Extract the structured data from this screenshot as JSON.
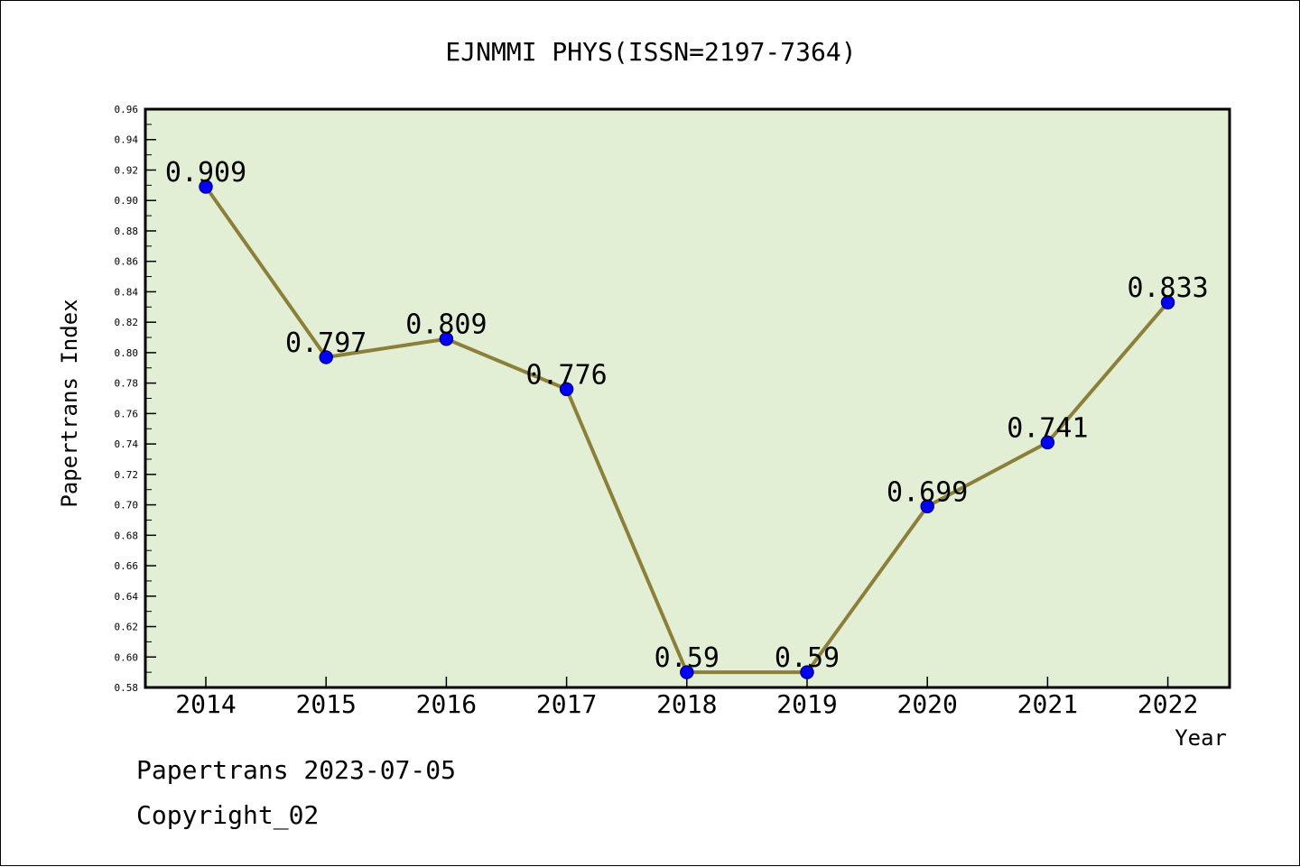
{
  "chart_data": {
    "type": "line",
    "title": "EJNMMI PHYS(ISSN=2197-7364)",
    "xlabel": "Year",
    "ylabel": "Papertrans Index",
    "categories": [
      "2014",
      "2015",
      "2016",
      "2017",
      "2018",
      "2019",
      "2020",
      "2021",
      "2022"
    ],
    "values": [
      0.909,
      0.797,
      0.809,
      0.776,
      0.59,
      0.59,
      0.699,
      0.741,
      0.833
    ],
    "data_labels": [
      "0.909",
      "0.797",
      "0.809",
      "0.776",
      "0.59",
      "0.59",
      "0.699",
      "0.741",
      "0.833"
    ],
    "ylim": [
      0.58,
      0.96
    ],
    "yticks": [
      "0.58",
      "0.60",
      "0.62",
      "0.64",
      "0.66",
      "0.68",
      "0.70",
      "0.72",
      "0.74",
      "0.76",
      "0.78",
      "0.80",
      "0.82",
      "0.84",
      "0.86",
      "0.88",
      "0.90",
      "0.92",
      "0.94",
      "0.96"
    ],
    "grid": false,
    "colors": {
      "plot_bg": "#e2efd4",
      "line": "#8c7f3a",
      "marker": "#0000ff",
      "marker_edge": "#000080"
    }
  },
  "footer": {
    "line1": "Papertrans 2023-07-05",
    "line2": "Copyright_02"
  }
}
